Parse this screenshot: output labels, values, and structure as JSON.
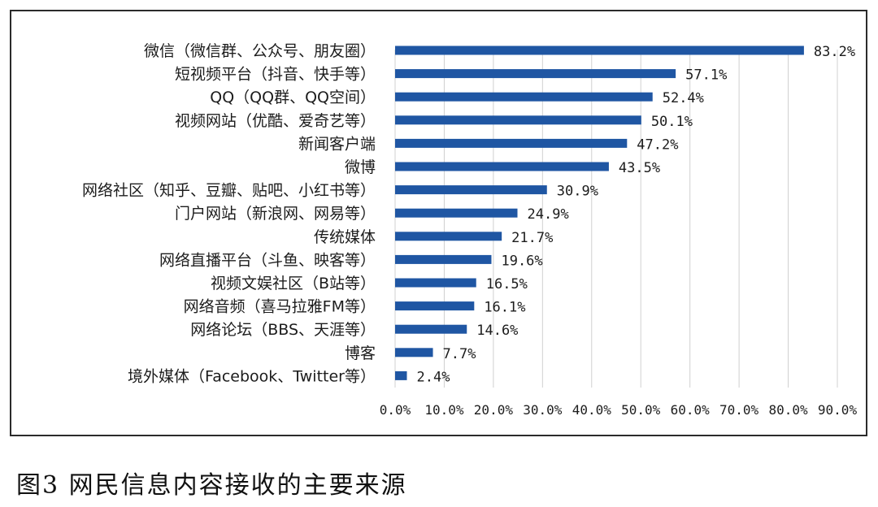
{
  "caption": "图3  网民信息内容接收的主要来源",
  "chart_data": {
    "type": "bar",
    "orientation": "horizontal",
    "categories": [
      "微信（微信群、公众号、朋友圈）",
      "短视频平台（抖音、快手等）",
      "QQ（QQ群、QQ空间）",
      "视频网站（优酷、爱奇艺等）",
      "新闻客户端",
      "微博",
      "网络社区（知乎、豆瓣、贴吧、小红书等）",
      "门户网站（新浪网、网易等）",
      "传统媒体",
      "网络直播平台（斗鱼、映客等）",
      "视频文娱社区（B站等）",
      "网络音频（喜马拉雅FM等）",
      "网络论坛（BBS、天涯等）",
      "博客",
      "境外媒体（Facebook、Twitter等）"
    ],
    "values": [
      83.2,
      57.1,
      52.4,
      50.1,
      47.2,
      43.5,
      30.9,
      24.9,
      21.7,
      19.6,
      16.5,
      16.1,
      14.6,
      7.7,
      2.4
    ],
    "value_labels": [
      "83.2%",
      "57.1%",
      "52.4%",
      "50.1%",
      "47.2%",
      "43.5%",
      "30.9%",
      "24.9%",
      "21.7%",
      "19.6%",
      "16.5%",
      "16.1%",
      "14.6%",
      "7.7%",
      "2.4%"
    ],
    "xticks": [
      0,
      10,
      20,
      30,
      40,
      50,
      60,
      70,
      80,
      90
    ],
    "xtick_labels": [
      "0.0%",
      "10.0%",
      "20.0%",
      "30.0%",
      "40.0%",
      "50.0%",
      "60.0%",
      "70.0%",
      "80.0%",
      "90.0%"
    ],
    "xlim": [
      0,
      90
    ],
    "grid": true,
    "bar_color": "#1f56a3"
  }
}
